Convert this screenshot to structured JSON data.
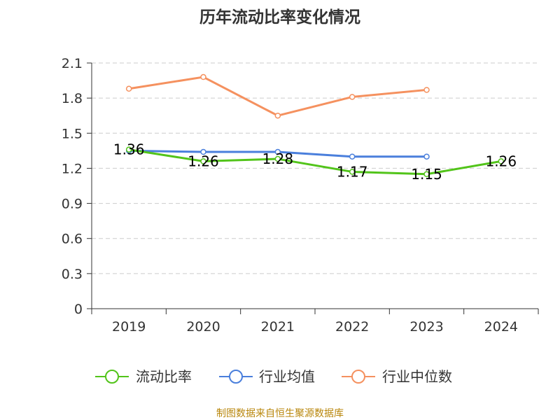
{
  "chart_data": {
    "type": "line",
    "title": "历年流动比率变化情况",
    "categories": [
      "2019",
      "2020",
      "2021",
      "2022",
      "2023",
      "2024"
    ],
    "ylim": [
      0,
      2.1
    ],
    "yticks": [
      "0",
      "0.3",
      "0.6",
      "0.9",
      "1.2",
      "1.5",
      "1.8",
      "2.1"
    ],
    "xlabel": "",
    "ylabel": "",
    "grid": true,
    "legend_position": "bottom",
    "series": [
      {
        "name": "流动比率",
        "color": "#52c41a",
        "values": [
          1.36,
          1.26,
          1.28,
          1.17,
          1.15,
          1.26
        ],
        "labels": [
          "1.36",
          "1.26",
          "1.28",
          "1.17",
          "1.15",
          "1.26"
        ]
      },
      {
        "name": "行业均值",
        "color": "#4a7fdc",
        "values": [
          1.35,
          1.34,
          1.34,
          1.3,
          1.3,
          null
        ]
      },
      {
        "name": "行业中位数",
        "color": "#f5915f",
        "values": [
          1.88,
          1.98,
          1.65,
          1.81,
          1.87,
          null
        ]
      }
    ],
    "source": "制图数据来自恒生聚源数据库"
  }
}
